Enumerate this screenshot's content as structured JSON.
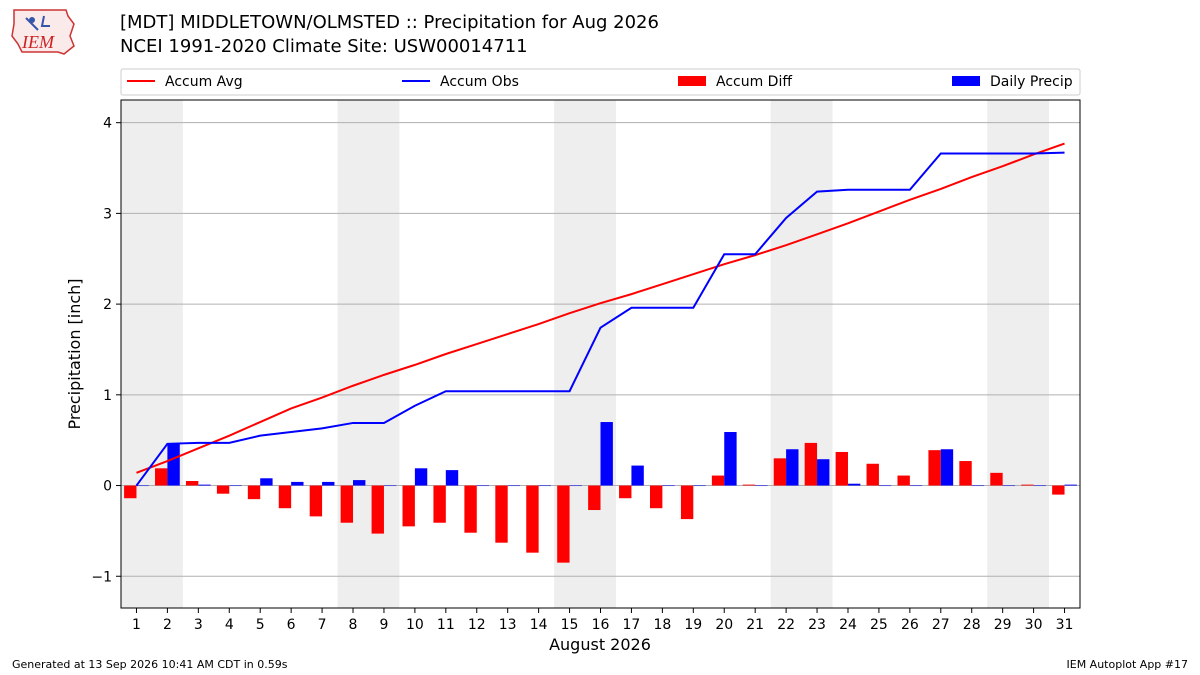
{
  "header": {
    "title_line1": "[MDT] MIDDLETOWN/OLMSTED :: Precipitation for Aug 2026",
    "title_line2": "NCEI 1991-2020 Climate Site: USW00014711",
    "logo_text": "IEM"
  },
  "footer": {
    "generated": "Generated at 13 Sep 2026 10:41 AM CDT in 0.59s",
    "app": "IEM Autoplot App #17"
  },
  "colors": {
    "accum_avg": "#ff0000",
    "accum_obs": "#0000ff",
    "accum_diff": "#ff0000",
    "daily_precip": "#0000ff",
    "weekend_shade": "#eeeeee",
    "grid": "#b0b0b0"
  },
  "chart_data": {
    "type": "bar",
    "title": "[MDT] MIDDLETOWN/OLMSTED :: Precipitation for Aug 2026",
    "subtitle": "NCEI 1991-2020 Climate Site: USW00014711",
    "xlabel": "August 2026",
    "ylabel": "Precipitation [inch]",
    "ylim": [
      -1.35,
      4.25
    ],
    "xlim": [
      0.5,
      31.5
    ],
    "y_ticks": [
      -1,
      0,
      1,
      2,
      3,
      4
    ],
    "y_tick_labels": [
      "−1",
      "0",
      "1",
      "2",
      "3",
      "4"
    ],
    "grid": true,
    "legend_placement": "top",
    "shaded_weekend_spans": [
      [
        0.5,
        2.5
      ],
      [
        7.5,
        9.5
      ],
      [
        14.5,
        16.5
      ],
      [
        21.5,
        23.5
      ],
      [
        28.5,
        30.5
      ]
    ],
    "categories": [
      "1",
      "2",
      "3",
      "4",
      "5",
      "6",
      "7",
      "8",
      "9",
      "10",
      "11",
      "12",
      "13",
      "14",
      "15",
      "16",
      "17",
      "18",
      "19",
      "20",
      "21",
      "22",
      "23",
      "24",
      "25",
      "26",
      "27",
      "28",
      "29",
      "30",
      "31"
    ],
    "series": [
      {
        "name": "Accum Avg",
        "type": "line",
        "values": [
          0.14,
          0.27,
          0.41,
          0.55,
          0.7,
          0.85,
          0.97,
          1.1,
          1.22,
          1.33,
          1.45,
          1.56,
          1.67,
          1.78,
          1.9,
          2.01,
          2.11,
          2.22,
          2.33,
          2.44,
          2.54,
          2.65,
          2.77,
          2.89,
          3.02,
          3.15,
          3.27,
          3.4,
          3.52,
          3.65,
          3.77
        ]
      },
      {
        "name": "Accum Obs",
        "type": "line",
        "values": [
          0.0,
          0.46,
          0.47,
          0.47,
          0.55,
          0.59,
          0.63,
          0.69,
          0.69,
          0.88,
          1.04,
          1.04,
          1.04,
          1.04,
          1.04,
          1.74,
          1.96,
          1.96,
          1.96,
          2.55,
          2.55,
          2.95,
          3.24,
          3.26,
          3.26,
          3.26,
          3.66,
          3.66,
          3.66,
          3.66,
          3.67
        ]
      },
      {
        "name": "Accum Diff",
        "type": "bar",
        "values": [
          -0.14,
          0.19,
          0.05,
          -0.09,
          -0.15,
          -0.25,
          -0.34,
          -0.41,
          -0.53,
          -0.45,
          -0.41,
          -0.52,
          -0.63,
          -0.74,
          -0.85,
          -0.27,
          -0.14,
          -0.25,
          -0.37,
          0.11,
          0.01,
          0.3,
          0.47,
          0.37,
          0.24,
          0.11,
          0.39,
          0.27,
          0.14,
          0.01,
          -0.1
        ]
      },
      {
        "name": "Daily Precip",
        "type": "bar",
        "values": [
          0.0,
          0.46,
          0.01,
          0.0,
          0.08,
          0.04,
          0.04,
          0.06,
          0.0,
          0.19,
          0.17,
          0.0,
          0.0,
          0.0,
          0.0,
          0.7,
          0.22,
          0.0,
          0.0,
          0.59,
          0.0,
          0.4,
          0.29,
          0.02,
          0.0,
          0.0,
          0.4,
          0.0,
          0.0,
          0.0,
          0.01
        ]
      }
    ]
  }
}
